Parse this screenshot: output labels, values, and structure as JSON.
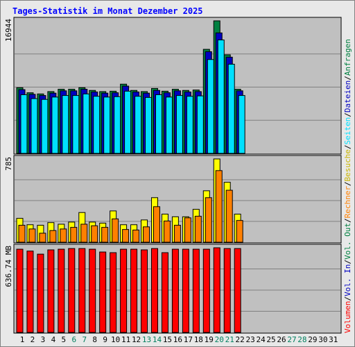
{
  "chart_data": {
    "type": "bar",
    "title": "Tages-Statistik im Monat Dezember 2025",
    "categories": [
      "1",
      "2",
      "3",
      "4",
      "5",
      "6",
      "7",
      "8",
      "9",
      "10",
      "11",
      "12",
      "13",
      "14",
      "15",
      "16",
      "17",
      "18",
      "19",
      "20",
      "21",
      "22",
      "23",
      "24",
      "25",
      "26",
      "27",
      "28",
      "29",
      "30",
      "31"
    ],
    "weekend_days": [
      "6",
      "7",
      "13",
      "14",
      "20",
      "21",
      "27",
      "28"
    ],
    "panels": [
      {
        "id": "top",
        "ylabel_max": "16944",
        "ymax": 16944,
        "series": [
          {
            "name": "Anfragen",
            "color": "#008040",
            "values": [
              8400,
              7750,
              7600,
              7900,
              8200,
              8200,
              8400,
              8050,
              7900,
              7950,
              8850,
              8050,
              7900,
              8300,
              7950,
              8200,
              8050,
              8100,
              13300,
              16944,
              12600,
              8200,
              null,
              null,
              null,
              null,
              null,
              null,
              null,
              null,
              null
            ]
          },
          {
            "name": "Dateien",
            "color": "#0000c0",
            "values": [
              8150,
              7550,
              7400,
              7700,
              8000,
              8000,
              8200,
              7850,
              7700,
              7750,
              8600,
              7850,
              7700,
              8050,
              7750,
              8000,
              7850,
              7900,
              13000,
              15400,
              12300,
              8000,
              null,
              null,
              null,
              null,
              null,
              null,
              null,
              null,
              null
            ]
          },
          {
            "name": "Seiten",
            "color": "#00e0ff",
            "values": [
              7500,
              7000,
              6900,
              7200,
              7400,
              7400,
              7600,
              7300,
              7200,
              7250,
              7950,
              7300,
              7150,
              7500,
              7200,
              7400,
              7300,
              7350,
              12000,
              14500,
              11400,
              7400,
              null,
              null,
              null,
              null,
              null,
              null,
              null,
              null,
              null
            ]
          }
        ]
      },
      {
        "id": "middle",
        "ylabel_max": "785",
        "ymax": 785,
        "series": [
          {
            "name": "Besuche",
            "color": "#ffff00",
            "values": [
              225,
              165,
              160,
              185,
              170,
              190,
              280,
              190,
              180,
              295,
              165,
              165,
              210,
              420,
              265,
              240,
              240,
              310,
              485,
              785,
              565,
              265,
              null,
              null,
              null,
              null,
              null,
              null,
              null,
              null,
              null
            ]
          },
          {
            "name": "Rechner",
            "color": "#ff8000",
            "values": [
              160,
              125,
              85,
              110,
              125,
              140,
              170,
              155,
              140,
              220,
              120,
              115,
              145,
              335,
              200,
              160,
              230,
              245,
              420,
              675,
              490,
              205,
              null,
              null,
              null,
              null,
              null,
              null,
              null,
              null,
              null
            ]
          }
        ]
      },
      {
        "id": "bottom",
        "ylabel_max": "636.74 MB",
        "ymax": 636.74,
        "series": [
          {
            "name": "Volumen",
            "color": "#ff0000",
            "values": [
              626,
              612,
              589,
              621,
              626,
              631,
              631,
              626,
              605,
              600,
              626,
              626,
              621,
              631,
              600,
              626,
              626,
              626,
              626,
              636.74,
              631,
              631,
              null,
              null,
              null,
              null,
              null,
              null,
              null,
              null,
              null
            ]
          }
        ]
      }
    ],
    "right_legend": [
      {
        "text": "Anfragen",
        "color": "#008040"
      },
      {
        "text": "Dateien",
        "color": "#0000c0"
      },
      {
        "text": "Seiten",
        "color": "#00e0ff"
      },
      {
        "text": "Besuche",
        "color": "#c8b400"
      },
      {
        "text": "Rechner",
        "color": "#ff8000"
      },
      {
        "text": "Vol. Out",
        "color": "#008040"
      },
      {
        "text": "Vol. In",
        "color": "#0000c0"
      },
      {
        "text": "Volumen",
        "color": "#ff0000"
      }
    ],
    "legend_separator": "/",
    "colors": {
      "title": "#0000ff",
      "weekday_label": "#000000",
      "weekend_label": "#00805f",
      "plot_bg": "#c0c0c0",
      "grid": "#808080"
    }
  }
}
